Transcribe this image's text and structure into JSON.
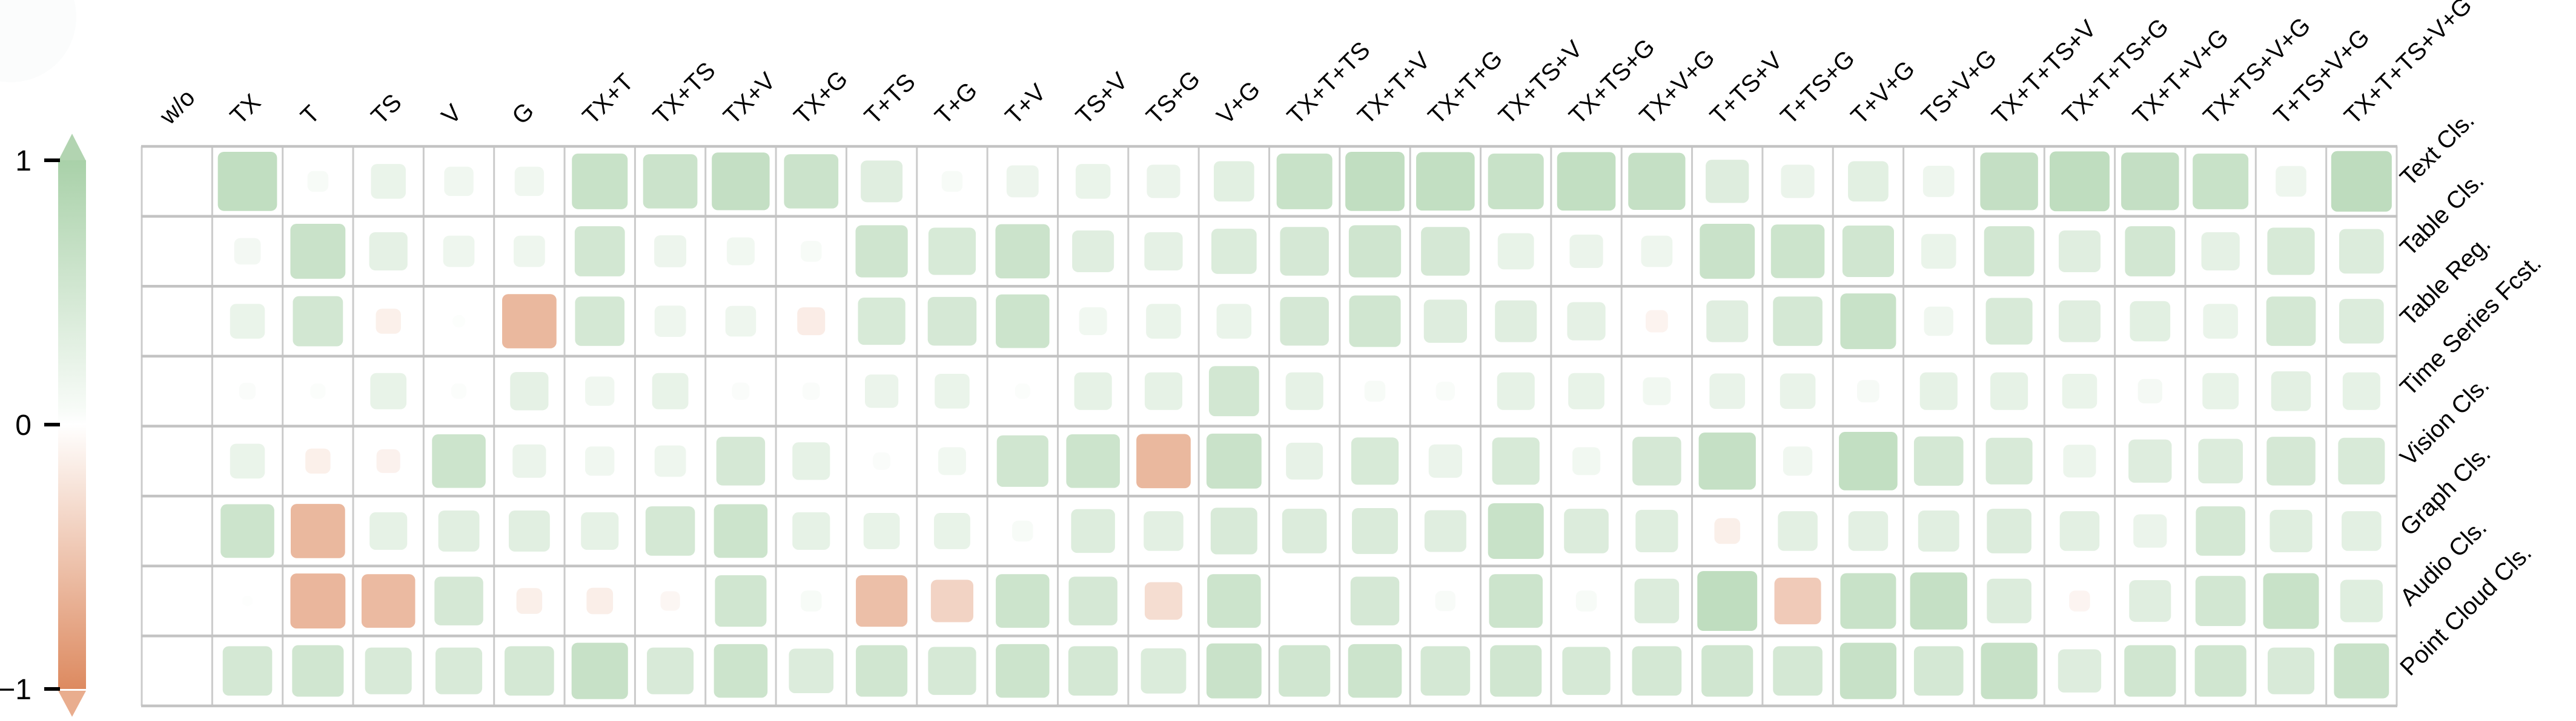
{
  "chart_data": {
    "type": "heatmap",
    "title": "",
    "xlabel": "",
    "ylabel": "",
    "encoding": "cell size and color encode value; green = positive, orange = negative; empty cell = 0",
    "value_range": [
      -1,
      1
    ],
    "legend_position": "left",
    "grid": true,
    "colorbar": {
      "orientation": "vertical",
      "positive_color": "#a9d1a9",
      "negative_color": "#dd8a60",
      "ticks": [
        {
          "label": "1",
          "value": 1
        },
        {
          "label": "0",
          "value": 0
        },
        {
          "label": "−1",
          "value": -1
        }
      ]
    },
    "columns": [
      "w/o",
      "TX",
      "T",
      "TS",
      "V",
      "G",
      "TX+T",
      "TX+TS",
      "TX+V",
      "TX+G",
      "T+TS",
      "T+G",
      "T+V",
      "TS+V",
      "TS+G",
      "V+G",
      "TX+T+TS",
      "TX+T+V",
      "TX+T+G",
      "TX+TS+V",
      "TX+TS+G",
      "TX+V+G",
      "T+TS+V",
      "T+TS+G",
      "T+V+G",
      "TS+V+G",
      "TX+T+TS+V",
      "TX+T+TS+G",
      "TX+T+V+G",
      "TX+TS+V+G",
      "T+TS+V+G",
      "TX+T+TS+V+G"
    ],
    "rows": [
      "Text Cls.",
      "Table Cls.",
      "Table Reg.",
      "Time Series Fcst.",
      "Vision Cls.",
      "Graph Cls.",
      "Audio Cls.",
      "Point Cloud Cls."
    ],
    "values": [
      [
        0,
        0.85,
        0.3,
        0.5,
        0.42,
        0.42,
        0.8,
        0.78,
        0.83,
        0.78,
        0.6,
        0.3,
        0.46,
        0.5,
        0.48,
        0.58,
        0.8,
        0.85,
        0.84,
        0.8,
        0.84,
        0.82,
        0.62,
        0.48,
        0.58,
        0.45,
        0.83,
        0.86,
        0.83,
        0.8,
        0.44,
        0.87
      ],
      [
        0,
        0.38,
        0.79,
        0.55,
        0.45,
        0.45,
        0.72,
        0.46,
        0.4,
        0.3,
        0.75,
        0.68,
        0.78,
        0.6,
        0.55,
        0.65,
        0.7,
        0.75,
        0.7,
        0.52,
        0.48,
        0.45,
        0.79,
        0.77,
        0.74,
        0.5,
        0.72,
        0.6,
        0.72,
        0.55,
        0.68,
        0.64
      ],
      [
        0,
        0.5,
        0.72,
        -0.36,
        0.18,
        -0.78,
        0.71,
        0.45,
        0.44,
        -0.4,
        0.68,
        0.7,
        0.77,
        0.4,
        0.5,
        0.5,
        0.7,
        0.74,
        0.62,
        0.6,
        0.55,
        -0.32,
        0.6,
        0.71,
        0.8,
        0.42,
        0.67,
        0.6,
        0.58,
        0.5,
        0.71,
        0.64
      ],
      [
        0,
        0.24,
        0.22,
        0.52,
        0.22,
        0.55,
        0.42,
        0.52,
        0.25,
        0.25,
        0.48,
        0.5,
        0.22,
        0.54,
        0.54,
        0.72,
        0.54,
        0.3,
        0.27,
        0.54,
        0.52,
        0.4,
        0.51,
        0.51,
        0.32,
        0.54,
        0.54,
        0.5,
        0.35,
        0.52,
        0.57,
        0.54
      ],
      [
        0,
        0.5,
        -0.36,
        -0.34,
        0.77,
        0.48,
        0.42,
        0.45,
        0.7,
        0.54,
        0.25,
        0.4,
        0.74,
        0.77,
        -0.78,
        0.79,
        0.53,
        0.68,
        0.48,
        0.68,
        0.4,
        0.7,
        0.82,
        0.42,
        0.84,
        0.71,
        0.67,
        0.47,
        0.62,
        0.64,
        0.7,
        0.67
      ],
      [
        0,
        0.77,
        -0.78,
        0.54,
        0.59,
        0.59,
        0.54,
        0.71,
        0.77,
        0.54,
        0.52,
        0.52,
        0.3,
        0.63,
        0.57,
        0.67,
        0.64,
        0.66,
        0.6,
        0.8,
        0.64,
        0.61,
        -0.37,
        0.57,
        0.57,
        0.59,
        0.64,
        0.57,
        0.48,
        0.71,
        0.61,
        0.57
      ],
      [
        0,
        0.15,
        -0.79,
        -0.77,
        0.7,
        -0.37,
        -0.38,
        -0.28,
        0.74,
        0.3,
        -0.74,
        -0.61,
        0.77,
        0.7,
        -0.54,
        0.77,
        0,
        0.7,
        0.29,
        0.77,
        0.3,
        0.64,
        0.86,
        -0.67,
        0.8,
        0.82,
        0.64,
        -0.3,
        0.6,
        0.72,
        0.8,
        0.61
      ],
      [
        0,
        0.71,
        0.74,
        0.67,
        0.67,
        0.71,
        0.81,
        0.67,
        0.77,
        0.64,
        0.74,
        0.69,
        0.77,
        0.71,
        0.65,
        0.79,
        0.74,
        0.77,
        0.71,
        0.74,
        0.69,
        0.71,
        0.74,
        0.71,
        0.81,
        0.71,
        0.81,
        0.62,
        0.74,
        0.74,
        0.67,
        0.79
      ]
    ]
  }
}
